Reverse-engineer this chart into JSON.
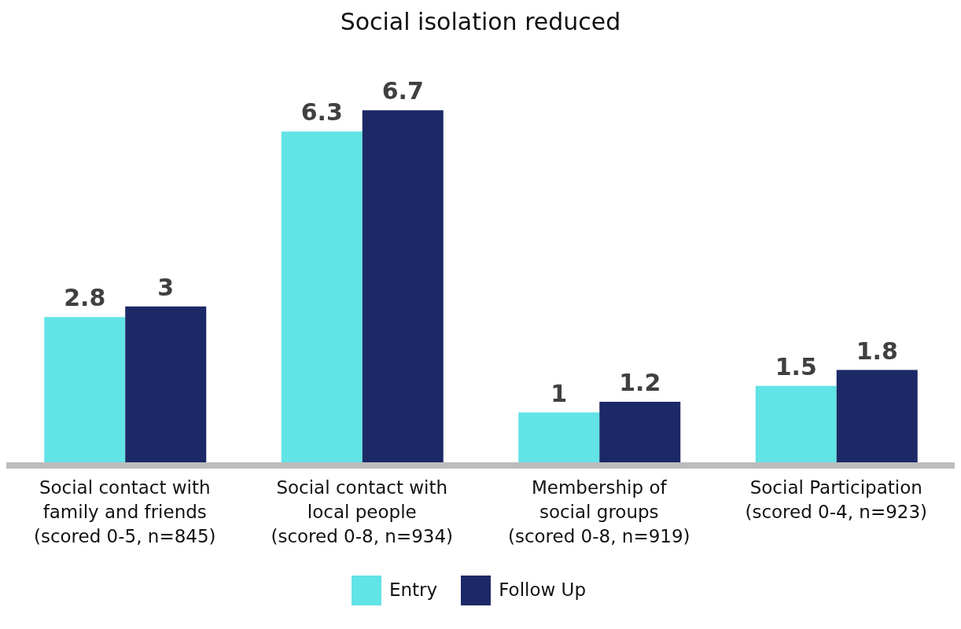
{
  "chart_data": {
    "type": "bar",
    "title": "Social isolation reduced",
    "categories": [
      "Social contact with\nfamily and friends\n(scored 0-5, n=845)",
      "Social contact with\nlocal people\n(scored 0-8, n=934)",
      "Membership of\nsocial groups\n(scored 0-8, n=919)",
      "Social Participation\n(scored 0-4, n=923)"
    ],
    "series": [
      {
        "name": "Entry",
        "color": "#62e3e6",
        "values": [
          2.8,
          6.3,
          1,
          1.5
        ]
      },
      {
        "name": "Follow Up",
        "color": "#1c2966",
        "values": [
          3,
          6.7,
          1.2,
          1.8
        ]
      }
    ],
    "data_labels": true,
    "grid": false,
    "legend": "bottom"
  }
}
